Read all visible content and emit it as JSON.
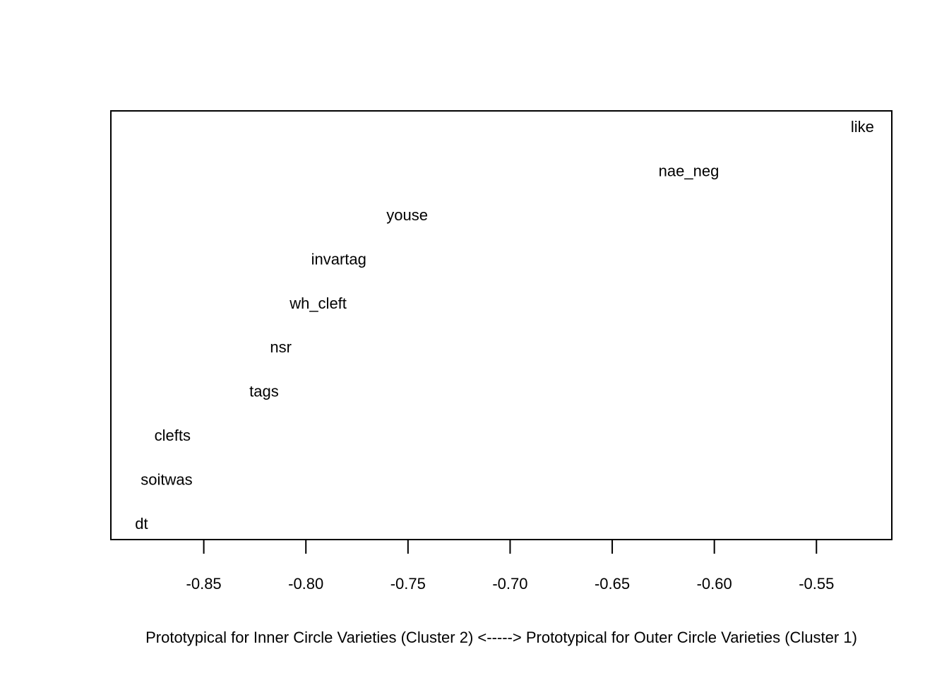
{
  "chart_data": {
    "type": "scatter",
    "title": "",
    "xlabel": "Prototypical for Inner Circle Varieties (Cluster 2) <-----> Prototypical for Outer Circle Varieties (Cluster 1)",
    "ylabel": "",
    "xlim": [
      -0.8955,
      -0.5131
    ],
    "xticks": [
      "-0.85",
      "-0.80",
      "-0.75",
      "-0.70",
      "-0.65",
      "-0.60",
      "-0.55"
    ],
    "xtick_values": [
      -0.85,
      -0.8,
      -0.75,
      -0.7,
      -0.65,
      -0.6,
      -0.55
    ],
    "grid": false,
    "legend": "none",
    "points": [
      {
        "label": "like",
        "x": -0.5275,
        "rank": 10
      },
      {
        "label": "nae_neg",
        "x": -0.6125,
        "rank": 9
      },
      {
        "label": "youse",
        "x": -0.7504,
        "rank": 8
      },
      {
        "label": "invartag",
        "x": -0.7839,
        "rank": 7
      },
      {
        "label": "wh_cleft",
        "x": -0.794,
        "rank": 6
      },
      {
        "label": "nsr",
        "x": -0.8123,
        "rank": 5
      },
      {
        "label": "tags",
        "x": -0.8205,
        "rank": 4
      },
      {
        "label": "clefts",
        "x": -0.8653,
        "rank": 3
      },
      {
        "label": "soitwas",
        "x": -0.8682,
        "rank": 2
      },
      {
        "label": "dt",
        "x": -0.8805,
        "rank": 1
      }
    ],
    "ylim": [
      0.64,
      10.36
    ]
  }
}
